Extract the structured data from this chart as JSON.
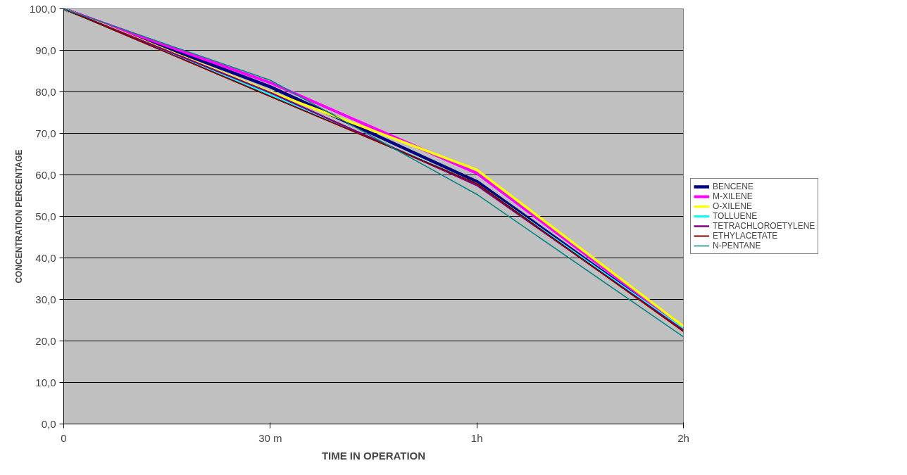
{
  "chart_data": {
    "type": "line",
    "xlabel": "TIME IN OPERATION",
    "ylabel": "CONCENTRATION PERCENTAGE",
    "categories": [
      "0",
      "30 m",
      "1h",
      "2h"
    ],
    "series": [
      {
        "name": "BENCENE",
        "color": "#000080",
        "values": [
          100,
          81.2,
          58.4,
          22.8
        ]
      },
      {
        "name": "M-XILENE",
        "color": "#ff00ff",
        "values": [
          100,
          82.2,
          60.4,
          23.2
        ]
      },
      {
        "name": "O-XILENE",
        "color": "#ffff00",
        "values": [
          100,
          80.0,
          61.2,
          23.5
        ]
      },
      {
        "name": "TOLLUENE",
        "color": "#00ffff",
        "values": [
          100,
          79.3,
          57.8,
          22.9
        ]
      },
      {
        "name": "TETRACHLOROETYLENE",
        "color": "#800080",
        "values": [
          100,
          79.8,
          57.5,
          22.6
        ]
      },
      {
        "name": "ETHYLACETATE",
        "color": "#800000",
        "values": [
          100,
          78.9,
          57.9,
          22.3
        ]
      },
      {
        "name": "N-PENTANE",
        "color": "#008080",
        "values": [
          100,
          82.8,
          55.3,
          21.0
        ]
      }
    ],
    "ylim": [
      0,
      100
    ],
    "yticks": [
      {
        "value": 0,
        "label": "0,0"
      },
      {
        "value": 10,
        "label": "10,0"
      },
      {
        "value": 20,
        "label": "20,0"
      },
      {
        "value": 30,
        "label": "30,0"
      },
      {
        "value": 40,
        "label": "40,0"
      },
      {
        "value": 50,
        "label": "50,0"
      },
      {
        "value": 60,
        "label": "60,0"
      },
      {
        "value": 70,
        "label": "70,0"
      },
      {
        "value": 80,
        "label": "80,0"
      },
      {
        "value": 90,
        "label": "90,0"
      },
      {
        "value": 100,
        "label": "100,0"
      }
    ],
    "grid": "y",
    "legend": "right",
    "line_style": "solid",
    "marker": "none"
  }
}
